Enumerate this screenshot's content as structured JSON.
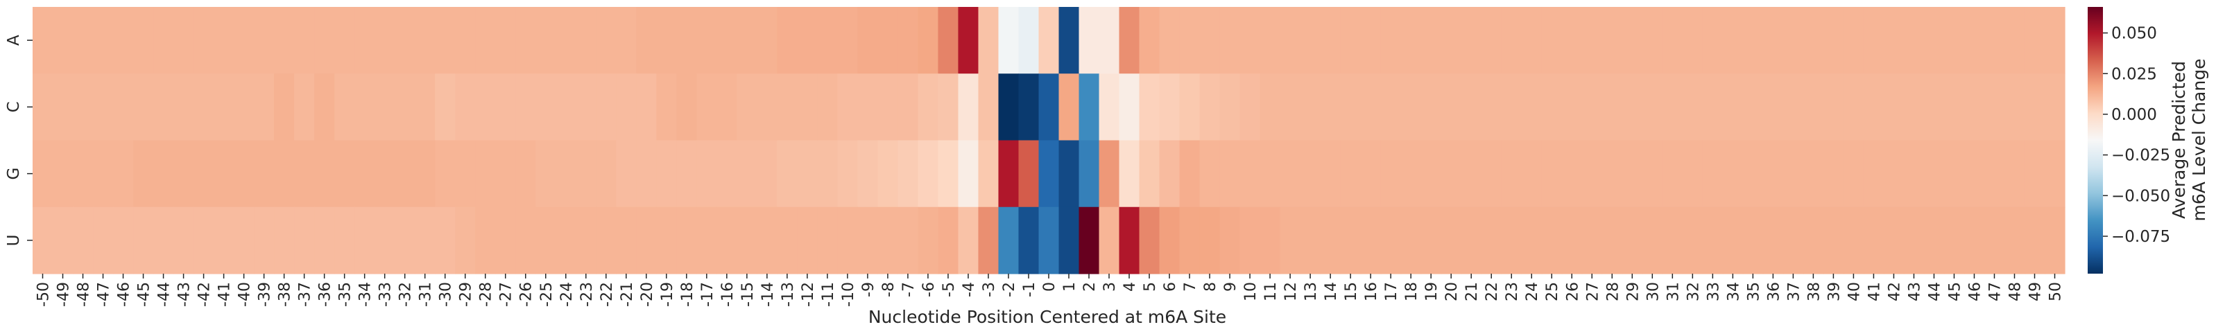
{
  "chart_data": {
    "type": "heatmap",
    "title": "",
    "xlabel": "Nucleotide Position Centered at m6A Site",
    "ylabel": "",
    "x": [
      -50,
      -49,
      -48,
      -47,
      -46,
      -45,
      -44,
      -43,
      -42,
      -41,
      -40,
      -39,
      -38,
      -37,
      -36,
      -35,
      -34,
      -33,
      -32,
      -31,
      -30,
      -29,
      -28,
      -27,
      -26,
      -25,
      -24,
      -23,
      -22,
      -21,
      -20,
      -19,
      -18,
      -17,
      -16,
      -15,
      -14,
      -13,
      -12,
      -11,
      -10,
      -9,
      -8,
      -7,
      -6,
      -5,
      -4,
      -3,
      -2,
      -1,
      0,
      1,
      2,
      3,
      4,
      5,
      6,
      7,
      8,
      9,
      10,
      11,
      12,
      13,
      14,
      15,
      16,
      17,
      18,
      19,
      20,
      21,
      22,
      23,
      24,
      25,
      26,
      27,
      28,
      29,
      30,
      31,
      32,
      33,
      34,
      35,
      36,
      37,
      38,
      39,
      40,
      41,
      42,
      43,
      44,
      45,
      46,
      47,
      48,
      49,
      50
    ],
    "y": [
      "A",
      "C",
      "G",
      "U"
    ],
    "values": [
      [
        0.012,
        0.012,
        0.012,
        0.012,
        0.012,
        0.012,
        0.012,
        0.012,
        0.012,
        0.012,
        0.012,
        0.012,
        0.012,
        0.012,
        0.012,
        0.012,
        0.012,
        0.012,
        0.012,
        0.012,
        0.012,
        0.012,
        0.012,
        0.012,
        0.012,
        0.012,
        0.012,
        0.012,
        0.012,
        0.012,
        0.013,
        0.013,
        0.013,
        0.013,
        0.013,
        0.013,
        0.013,
        0.014,
        0.014,
        0.014,
        0.014,
        0.015,
        0.015,
        0.015,
        0.016,
        0.025,
        0.05,
        0.008,
        -0.018,
        -0.022,
        0.004,
        -0.09,
        -0.008,
        -0.008,
        0.022,
        0.014,
        0.012,
        0.012,
        0.012,
        0.012,
        0.012,
        0.012,
        0.012,
        0.012,
        0.012,
        0.012,
        0.012,
        0.012,
        0.012,
        0.012,
        0.012,
        0.012,
        0.012,
        0.012,
        0.012,
        0.012,
        0.012,
        0.012,
        0.012,
        0.012,
        0.012,
        0.012,
        0.012,
        0.012,
        0.012,
        0.012,
        0.012,
        0.012,
        0.012,
        0.012,
        0.012,
        0.012,
        0.012,
        0.012,
        0.012,
        0.012,
        0.012,
        0.012,
        0.012,
        0.012,
        0.012
      ],
      [
        0.011,
        0.011,
        0.011,
        0.011,
        0.011,
        0.011,
        0.011,
        0.011,
        0.011,
        0.011,
        0.011,
        0.011,
        0.013,
        0.011,
        0.013,
        0.011,
        0.011,
        0.011,
        0.011,
        0.011,
        0.009,
        0.01,
        0.01,
        0.01,
        0.01,
        0.01,
        0.01,
        0.01,
        0.01,
        0.01,
        0.01,
        0.012,
        0.013,
        0.012,
        0.012,
        0.011,
        0.011,
        0.011,
        0.011,
        0.011,
        0.01,
        0.01,
        0.01,
        0.01,
        0.008,
        0.007,
        -0.005,
        0.008,
        -0.098,
        -0.095,
        -0.085,
        0.016,
        -0.068,
        -0.005,
        -0.01,
        0.003,
        0.004,
        0.006,
        0.008,
        0.009,
        0.01,
        0.011,
        0.011,
        0.011,
        0.011,
        0.011,
        0.011,
        0.011,
        0.011,
        0.011,
        0.011,
        0.011,
        0.011,
        0.011,
        0.011,
        0.011,
        0.011,
        0.011,
        0.011,
        0.011,
        0.011,
        0.011,
        0.011,
        0.011,
        0.011,
        0.011,
        0.011,
        0.011,
        0.011,
        0.011,
        0.011,
        0.011,
        0.011,
        0.011,
        0.011,
        0.011,
        0.011,
        0.011,
        0.011,
        0.011,
        0.011
      ],
      [
        0.012,
        0.012,
        0.012,
        0.012,
        0.012,
        0.013,
        0.013,
        0.013,
        0.013,
        0.013,
        0.013,
        0.013,
        0.013,
        0.013,
        0.013,
        0.013,
        0.013,
        0.013,
        0.013,
        0.013,
        0.012,
        0.012,
        0.012,
        0.012,
        0.012,
        0.011,
        0.011,
        0.011,
        0.011,
        0.01,
        0.01,
        0.01,
        0.01,
        0.01,
        0.01,
        0.01,
        0.01,
        0.009,
        0.009,
        0.009,
        0.008,
        0.007,
        0.006,
        0.005,
        0.003,
        0.001,
        -0.01,
        0.006,
        0.05,
        0.034,
        -0.08,
        -0.09,
        -0.072,
        0.02,
        -0.002,
        0.006,
        0.01,
        0.014,
        0.012,
        0.012,
        0.012,
        0.012,
        0.012,
        0.012,
        0.012,
        0.012,
        0.012,
        0.012,
        0.012,
        0.012,
        0.012,
        0.012,
        0.012,
        0.012,
        0.012,
        0.012,
        0.012,
        0.012,
        0.012,
        0.012,
        0.012,
        0.012,
        0.012,
        0.012,
        0.012,
        0.012,
        0.012,
        0.012,
        0.012,
        0.012,
        0.012,
        0.012,
        0.012,
        0.012,
        0.012,
        0.012,
        0.012,
        0.012,
        0.012,
        0.012,
        0.012
      ],
      [
        0.01,
        0.01,
        0.01,
        0.01,
        0.01,
        0.01,
        0.01,
        0.01,
        0.01,
        0.01,
        0.01,
        0.01,
        0.01,
        0.01,
        0.01,
        0.01,
        0.01,
        0.01,
        0.01,
        0.01,
        0.01,
        0.011,
        0.012,
        0.012,
        0.012,
        0.012,
        0.012,
        0.012,
        0.012,
        0.012,
        0.012,
        0.012,
        0.012,
        0.012,
        0.012,
        0.012,
        0.012,
        0.012,
        0.012,
        0.012,
        0.012,
        0.012,
        0.012,
        0.012,
        0.013,
        0.014,
        0.008,
        0.022,
        -0.07,
        -0.088,
        -0.075,
        -0.09,
        0.07,
        0.012,
        0.05,
        0.024,
        0.018,
        0.016,
        0.016,
        0.015,
        0.014,
        0.014,
        0.013,
        0.013,
        0.013,
        0.013,
        0.013,
        0.013,
        0.013,
        0.013,
        0.013,
        0.013,
        0.013,
        0.013,
        0.013,
        0.013,
        0.013,
        0.013,
        0.013,
        0.013,
        0.013,
        0.013,
        0.013,
        0.013,
        0.013,
        0.013,
        0.013,
        0.013,
        0.013,
        0.013,
        0.013,
        0.013,
        0.013,
        0.013,
        0.013,
        0.013,
        0.013,
        0.013,
        0.013,
        0.013,
        0.013
      ]
    ],
    "vmin": -0.098,
    "vmax": 0.066,
    "colormap": "RdBu_r",
    "colorbar": {
      "label_lines": [
        "Average Predicted",
        "m6A Level Change"
      ],
      "ticks": [
        0.05,
        0.025,
        0.0,
        -0.025,
        -0.05,
        -0.075
      ],
      "tick_labels": [
        "0.050",
        "0.025",
        "0.000",
        "−0.025",
        "−0.050",
        "−0.075"
      ]
    }
  }
}
